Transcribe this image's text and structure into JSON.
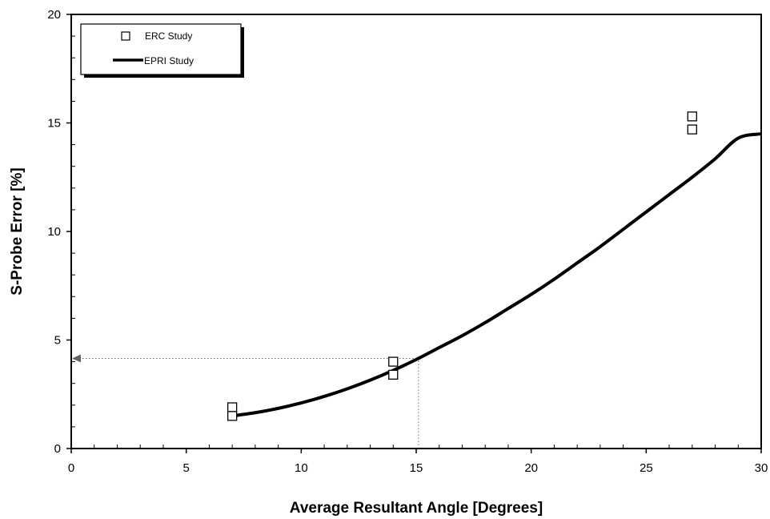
{
  "chart_data": {
    "type": "scatter",
    "xlabel": "Average Resultant Angle [Degrees]",
    "ylabel": "S-Probe Error [%]",
    "xlim": [
      0,
      30
    ],
    "ylim": [
      0,
      20
    ],
    "xticks": [
      0,
      5,
      10,
      15,
      20,
      25,
      30
    ],
    "yticks": [
      0,
      5,
      10,
      15,
      20
    ],
    "x_minor_step": 1,
    "y_minor_step": 1,
    "grid": false,
    "legend_position": "top-left",
    "series": [
      {
        "name": "ERC Study",
        "kind": "scatter",
        "marker": "open-square",
        "color": "#000000",
        "points": [
          [
            7,
            1.9
          ],
          [
            7,
            1.5
          ],
          [
            14,
            4.0
          ],
          [
            14,
            3.4
          ],
          [
            27,
            15.3
          ],
          [
            27,
            14.7
          ]
        ]
      },
      {
        "name": "EPRI Study",
        "kind": "line",
        "color": "#000000",
        "points": [
          [
            7,
            1.5
          ],
          [
            8,
            1.65
          ],
          [
            9,
            1.85
          ],
          [
            10,
            2.1
          ],
          [
            11,
            2.4
          ],
          [
            12,
            2.75
          ],
          [
            13,
            3.15
          ],
          [
            14,
            3.6
          ],
          [
            15,
            4.1
          ],
          [
            16,
            4.65
          ],
          [
            17,
            5.2
          ],
          [
            18,
            5.8
          ],
          [
            19,
            6.45
          ],
          [
            20,
            7.1
          ],
          [
            21,
            7.8
          ],
          [
            22,
            8.55
          ],
          [
            23,
            9.3
          ],
          [
            24,
            10.1
          ],
          [
            25,
            10.9
          ],
          [
            26,
            11.7
          ],
          [
            27,
            12.5
          ],
          [
            28,
            13.35
          ],
          [
            29,
            14.3
          ],
          [
            30,
            14.5
          ]
        ]
      }
    ],
    "annotations": [
      {
        "kind": "reference-line",
        "x": 15.1,
        "y": 4.15,
        "style": "dotted",
        "arrow_to": "y-axis"
      }
    ]
  }
}
